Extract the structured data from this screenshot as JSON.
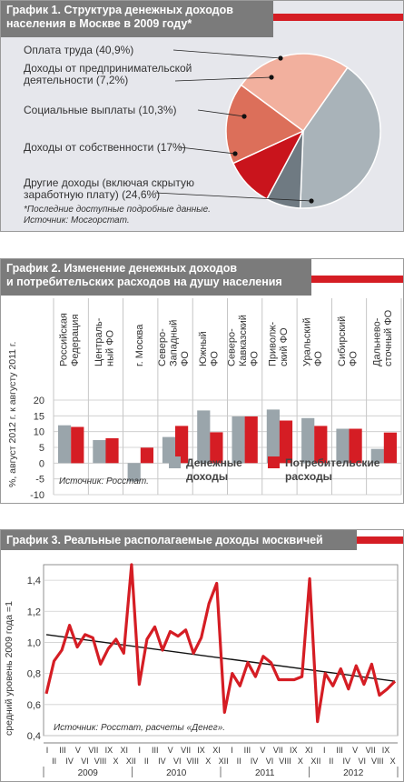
{
  "panel1": {
    "title_line1": "График 1. Структура денежных доходов",
    "title_line2": "населения в Москве в 2009 году*",
    "footnote_line1": "*Последние доступные подробные данные.",
    "footnote_line2": "Источник: Мосгорстат."
  },
  "panel2": {
    "title_line1": "График 2. Изменение денежных доходов",
    "title_line2": "и потребительских расходов на душу населения",
    "source": "Источник: Росстат.",
    "legend_income": [
      "Денежные",
      "доходы"
    ],
    "legend_spending": [
      "Потребительские",
      "расходы"
    ]
  },
  "panel3": {
    "title": "График 3. Реальные располагаемые доходы москвичей",
    "source": "Источник: Росстат, расчеты «Денег»."
  },
  "colors": {
    "header_gray": "#7b7b7b",
    "accent_red": "#d51d24",
    "income_gray": "#9aa5ab",
    "spending_red": "#d51d24",
    "pie_gray": "#a9b3b9",
    "pie_dark_gray": "#6f7a82",
    "pie_red": "#c9141c",
    "pie_orange": "#dc6f5a",
    "pie_pink": "#f2b09e"
  },
  "chart_data": [
    {
      "type": "pie",
      "title": "График 1. Структура денежных доходов населения в Москве в 2009 году*",
      "slices": [
        {
          "label": "Оплата труда (40,9%)",
          "value": 40.9,
          "color": "#a9b3b9"
        },
        {
          "label": "Доходы от предпринимательской деятельности (7,2%)",
          "label_lines": [
            "Доходы от предпринимательской",
            "деятельности (7,2%)"
          ],
          "value": 7.2,
          "color": "#6f7a82"
        },
        {
          "label": "Социальные выплаты (10,3%)",
          "value": 10.3,
          "color": "#c9141c"
        },
        {
          "label": "Доходы от собственности (17%)",
          "value": 17.0,
          "color": "#dc6f5a"
        },
        {
          "label": "Другие доходы (включая скрытую заработную плату) (24,6%)",
          "label_lines": [
            "Другие доходы (включая скрытую",
            "заработную плату) (24,6%)"
          ],
          "value": 24.6,
          "color": "#f2b09e"
        }
      ]
    },
    {
      "type": "bar",
      "title": "График 2. Изменение денежных доходов и потребительских расходов на душу населения",
      "ylabel": "%, август 2012 г. к августу 2011 г.",
      "ylim": [
        -10,
        20
      ],
      "yticks": [
        -10,
        -5,
        0,
        5,
        10,
        15,
        20
      ],
      "categories": [
        [
          "Российская",
          "Федерация"
        ],
        [
          "Централь-",
          "ный ФО"
        ],
        [
          "г. Москва"
        ],
        [
          "Северо-",
          "Западный",
          "ФО"
        ],
        [
          "Южный",
          "ФО"
        ],
        [
          "Северо-",
          "Кавказский",
          "ФО"
        ],
        [
          "Приволж-",
          "ский ФО"
        ],
        [
          "Уральский",
          "ФО"
        ],
        [
          "Сибирский",
          "ФО"
        ],
        [
          "Дальнево-",
          "сточный ФО"
        ]
      ],
      "series": [
        {
          "name": "Денежные доходы",
          "color": "#9aa5ab",
          "values": [
            12.0,
            7.3,
            -5.8,
            8.3,
            16.7,
            14.8,
            17.0,
            14.3,
            10.9,
            4.5
          ]
        },
        {
          "name": "Потребительские расходы",
          "color": "#d51d24",
          "values": [
            11.5,
            7.9,
            4.9,
            11.8,
            9.8,
            14.8,
            13.5,
            11.8,
            10.9,
            9.7
          ]
        }
      ]
    },
    {
      "type": "line",
      "title": "График 3. Реальные располагаемые доходы москвичей",
      "ylabel": "средний уровень 2009 года =1",
      "ylim": [
        0.4,
        1.5
      ],
      "yticks": [
        "0,4",
        "0,6",
        "0,8",
        "1,0",
        "1,2",
        "1,4"
      ],
      "ytick_values": [
        0.4,
        0.6,
        0.8,
        1.0,
        1.2,
        1.4
      ],
      "month_labels_top": [
        "I",
        "III",
        "V",
        "VII",
        "IX",
        "XI",
        "I",
        "III",
        "V",
        "VII",
        "IX",
        "XI",
        "I",
        "III",
        "V",
        "VII",
        "IX",
        "XI",
        "I",
        "III",
        "V",
        "VII",
        "IX"
      ],
      "month_labels_bottom": [
        "II",
        "IV",
        "VI",
        "VIII",
        "X",
        "XII",
        "II",
        "IV",
        "VI",
        "VIII",
        "X",
        "XII",
        "II",
        "IV",
        "VI",
        "VIII",
        "X",
        "XII",
        "II",
        "IV",
        "VI",
        "VIII",
        "X"
      ],
      "years": [
        "2009",
        "2010",
        "2011",
        "2012"
      ],
      "series": [
        {
          "name": "Реальные располагаемые доходы",
          "color": "#d51d24",
          "values": [
            0.67,
            0.88,
            0.95,
            1.11,
            0.97,
            1.05,
            1.03,
            0.86,
            0.96,
            1.02,
            0.93,
            1.5,
            0.73,
            1.02,
            1.1,
            0.95,
            1.07,
            1.04,
            1.08,
            0.93,
            1.03,
            1.25,
            1.38,
            0.55,
            0.8,
            0.72,
            0.87,
            0.78,
            0.91,
            0.87,
            0.76,
            0.76,
            0.76,
            0.78,
            1.41,
            0.49,
            0.8,
            0.72,
            0.83,
            0.7,
            0.85,
            0.73,
            0.86,
            0.66,
            0.7,
            0.75
          ]
        }
      ],
      "trend": {
        "color": "#111111",
        "start": 1.05,
        "end": 0.75
      }
    }
  ]
}
